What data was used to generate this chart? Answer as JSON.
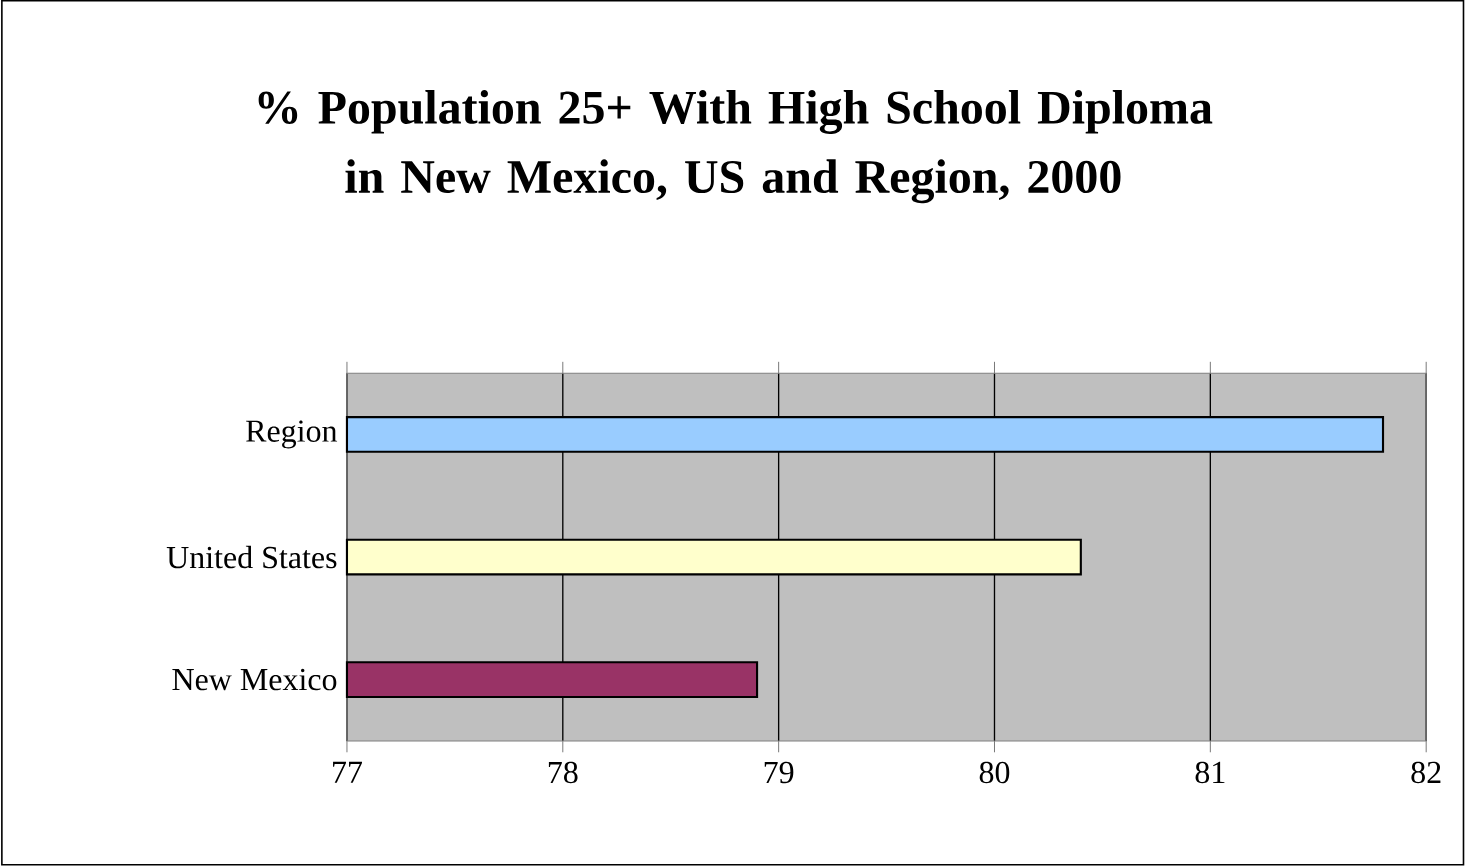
{
  "chart_data": {
    "type": "bar",
    "orientation": "horizontal",
    "title": "% Population 25+ With High School Diploma in New Mexico, US and Region, 2000",
    "categories": [
      "Region",
      "United States",
      "New Mexico"
    ],
    "values": [
      81.8,
      80.4,
      78.9
    ],
    "colors": [
      "#99ccff",
      "#ffffcc",
      "#993366"
    ],
    "xlim": [
      77,
      82
    ],
    "xticks": [
      77,
      78,
      79,
      80,
      81,
      82
    ],
    "grid": "x"
  }
}
